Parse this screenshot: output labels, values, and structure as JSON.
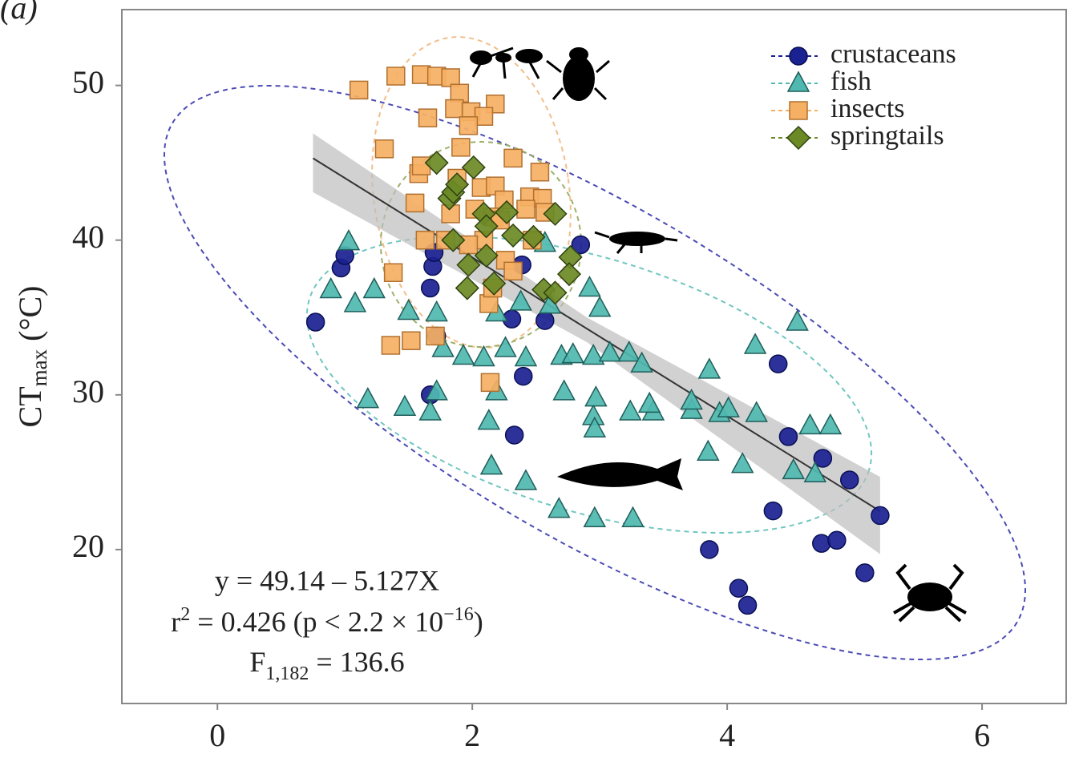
{
  "chart_data": {
    "type": "scatter",
    "panel_label": "(a)",
    "y_label": {
      "main": "CT",
      "sub": "max",
      "rest": " (°C)"
    },
    "annotation": {
      "line1": "y = 49.14 – 5.127X",
      "line2": {
        "a": "r",
        "sup": "2",
        "b": " = 0.426 (p < 2.2 × 10",
        "sup2": "−16",
        "c": ")"
      },
      "line3": {
        "a": "F",
        "sub": "1,182",
        "b": " = 136.6"
      }
    },
    "xlim": [
      -0.75,
      6.66
    ],
    "ylim": [
      10.05,
      54.9
    ],
    "xticks": [
      0,
      2,
      4,
      6
    ],
    "yticks": [
      20,
      30,
      40,
      50
    ],
    "regression": {
      "intercept": 49.14,
      "slope": -5.127,
      "x_range": [
        0.75,
        5.2
      ],
      "band": {
        "x": [
          0.75,
          2.9,
          5.2
        ],
        "lower": [
          43.1,
          33.4,
          19.7
        ],
        "upper": [
          46.9,
          35.0,
          24.7
        ]
      }
    },
    "series": [
      {
        "name": "crustaceans",
        "color": "#1a2190",
        "marker": "circle",
        "x": [
          0.77,
          0.97,
          1.0,
          1.67,
          1.69,
          1.7,
          1.72,
          1.67,
          2.4,
          2.33,
          2.31,
          2.39,
          2.57,
          2.85,
          4.4,
          4.48,
          4.75,
          4.96,
          5.2,
          4.36,
          3.86,
          4.09,
          4.16,
          4.74,
          4.86,
          5.08
        ],
        "y": [
          34.7,
          38.2,
          39.0,
          36.9,
          38.3,
          39.2,
          33.8,
          30.0,
          31.2,
          27.4,
          34.9,
          38.4,
          34.8,
          39.7,
          32.0,
          27.3,
          25.9,
          24.5,
          22.2,
          22.5,
          20.0,
          17.5,
          16.4,
          20.4,
          20.6,
          18.5
        ]
      },
      {
        "name": "fish",
        "color": "#4fb8b0",
        "marker": "triangle",
        "x": [
          1.03,
          0.89,
          1.08,
          1.23,
          1.18,
          1.47,
          1.5,
          1.72,
          1.67,
          1.72,
          1.77,
          1.93,
          2.09,
          2.26,
          2.42,
          2.19,
          2.13,
          2.15,
          2.42,
          2.19,
          2.38,
          2.57,
          2.61,
          2.7,
          2.79,
          2.72,
          2.68,
          2.96,
          3.26,
          2.95,
          2.96,
          2.97,
          3.0,
          2.92,
          2.95,
          3.08,
          3.23,
          3.33,
          3.24,
          3.42,
          3.39,
          3.72,
          3.72,
          3.85,
          3.86,
          3.94,
          4.01,
          4.12,
          4.23,
          4.22,
          4.55,
          4.52,
          4.65,
          4.81,
          4.69
        ],
        "y": [
          39.9,
          36.8,
          35.9,
          36.8,
          29.7,
          29.2,
          35.4,
          35.3,
          28.9,
          30.2,
          33.0,
          32.5,
          32.4,
          33.0,
          32.4,
          30.2,
          28.3,
          25.4,
          24.4,
          35.3,
          36.0,
          39.8,
          35.8,
          32.5,
          32.6,
          30.2,
          22.6,
          22.0,
          22.0,
          28.6,
          27.8,
          29.8,
          35.6,
          36.9,
          32.5,
          32.7,
          32.7,
          32.0,
          28.9,
          28.9,
          29.4,
          29.0,
          29.6,
          26.3,
          31.6,
          28.8,
          29.1,
          25.5,
          28.8,
          33.2,
          34.7,
          25.1,
          28.0,
          28.0,
          24.9
        ]
      },
      {
        "name": "insects",
        "color": "#f6b063",
        "marker": "square",
        "x": [
          1.11,
          1.4,
          1.6,
          1.72,
          1.83,
          1.9,
          1.86,
          1.99,
          2.18,
          2.09,
          1.97,
          1.65,
          1.31,
          1.91,
          2.32,
          2.53,
          1.58,
          1.6,
          1.88,
          2.07,
          2.18,
          2.25,
          2.45,
          2.55,
          2.57,
          1.55,
          1.83,
          2.02,
          2.17,
          2.09,
          1.97,
          2.26,
          2.32,
          1.38,
          1.63,
          1.79,
          2.13,
          2.16,
          1.71,
          1.52,
          1.36,
          2.14,
          2.47,
          2.42,
          2.22
        ],
        "y": [
          49.7,
          50.6,
          50.7,
          50.6,
          50.5,
          49.5,
          48.5,
          48.3,
          48.8,
          48.0,
          47.4,
          47.9,
          45.9,
          46.0,
          45.3,
          44.4,
          44.3,
          44.8,
          44.0,
          43.4,
          43.5,
          42.6,
          42.8,
          42.7,
          41.8,
          42.4,
          41.7,
          42.0,
          41.5,
          40.0,
          39.7,
          38.7,
          38.0,
          37.9,
          40.0,
          40.0,
          35.9,
          36.9,
          33.8,
          33.5,
          33.2,
          30.8,
          40.0,
          42.0,
          41.3
        ]
      },
      {
        "name": "springtails",
        "color": "#6b8a25",
        "marker": "diamond",
        "x": [
          1.72,
          2.01,
          1.82,
          1.85,
          2.09,
          2.11,
          2.27,
          2.32,
          2.48,
          2.65,
          2.11,
          1.97,
          2.17,
          1.96,
          2.56,
          2.65,
          2.77,
          2.76,
          1.88,
          1.85
        ],
        "y": [
          45.0,
          44.7,
          42.7,
          43.1,
          41.7,
          40.9,
          41.8,
          40.3,
          40.2,
          41.7,
          39.0,
          38.4,
          37.2,
          36.9,
          36.8,
          36.6,
          38.9,
          37.8,
          43.6,
          40.0
        ]
      }
    ]
  }
}
